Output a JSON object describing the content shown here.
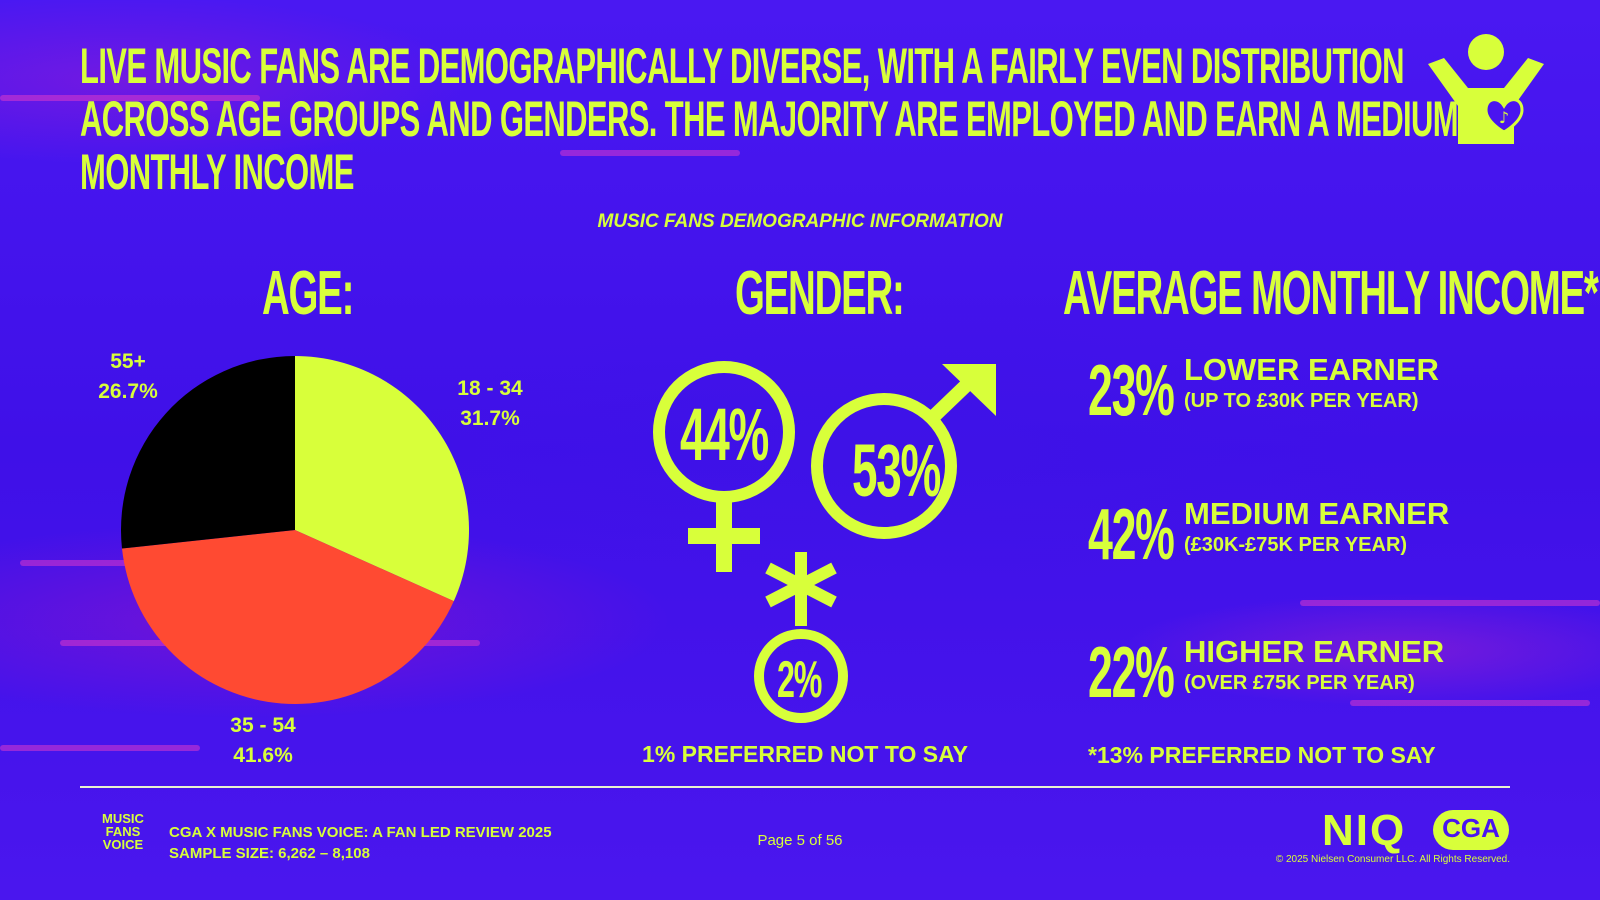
{
  "headline": {
    "line1": "LIVE MUSIC FANS ARE DEMOGRAPHICALLY DIVERSE, WITH A FAIRLY EVEN DISTRIBUTION",
    "line2": "ACROSS AGE GROUPS AND GENDERS. THE MAJORITY ARE EMPLOYED AND EARN A MEDIUM",
    "line3": "MONTHLY INCOME"
  },
  "subtitle": "MUSIC FANS DEMOGRAPHIC INFORMATION",
  "colors": {
    "background": "#4a14f0",
    "accent": "#d8ff3a",
    "slice_18_34": "#d8ff3a",
    "slice_35_54": "#ff4a32",
    "slice_55_plus": "#000000"
  },
  "age": {
    "title": "AGE:",
    "labels": {
      "s18_34": {
        "name": "18 - 34",
        "value": "31.7%"
      },
      "s35_54": {
        "name": "35 - 54",
        "value": "41.6%"
      },
      "s55_plus": {
        "name": "55+",
        "value": "26.7%"
      }
    }
  },
  "gender": {
    "title": "GENDER:",
    "female": "44%",
    "male": "53%",
    "other": "2%",
    "note": "1% PREFERRED NOT TO SAY"
  },
  "income": {
    "title": "AVERAGE MONTHLY INCOME*:",
    "rows": [
      {
        "pct": "23%",
        "label": "LOWER EARNER",
        "sub": "(UP TO £30K PER YEAR)"
      },
      {
        "pct": "42%",
        "label": "MEDIUM EARNER",
        "sub": "(£30K-£75K PER YEAR)"
      },
      {
        "pct": "22%",
        "label": "HIGHER EARNER",
        "sub": "(OVER £75K PER YEAR)"
      }
    ],
    "note": "*13% PREFERRED NOT TO SAY"
  },
  "footer": {
    "source_line1": "CGA X MUSIC FANS VOICE: A FAN LED REVIEW 2025",
    "source_line2": "SAMPLE SIZE: 6,262 – 8,108",
    "page": "Page 5 of 56",
    "copyright": "© 2025 Nielsen Consumer LLC. All Rights Reserved.",
    "logo_mfv": [
      "MUSIC",
      "FANS",
      "VOICE"
    ],
    "logo_niq": "NIQ",
    "logo_cga": "CGA"
  },
  "chart_data": {
    "type": "pie",
    "title": "AGE:",
    "categories": [
      "18 - 34",
      "35 - 54",
      "55+"
    ],
    "values": [
      31.7,
      41.6,
      26.7
    ],
    "unit": "%"
  }
}
